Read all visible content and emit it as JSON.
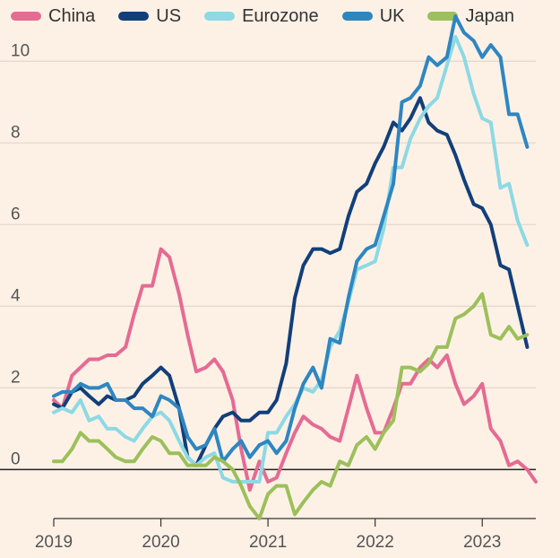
{
  "chart_data": {
    "type": "line",
    "title": "",
    "xlabel": "",
    "ylabel": "",
    "xlim": [
      2019.0,
      2023.5
    ],
    "ylim": [
      -1.2,
      11.5
    ],
    "y_ticks": [
      0,
      2,
      4,
      6,
      8,
      10
    ],
    "x_ticks": [
      2019,
      2020,
      2021,
      2022,
      2023
    ],
    "y_tick_labels": [
      "0",
      "2",
      "4",
      "6",
      "8",
      "10"
    ],
    "x_tick_labels": [
      "2019",
      "2020",
      "2021",
      "2022",
      "2023"
    ],
    "grid": true,
    "legend_position": "top-left",
    "series": [
      {
        "name": "China",
        "color": "#e56b93",
        "points": [
          [
            2019.0,
            1.7
          ],
          [
            2019.08,
            1.5
          ],
          [
            2019.17,
            2.3
          ],
          [
            2019.25,
            2.5
          ],
          [
            2019.33,
            2.7
          ],
          [
            2019.42,
            2.7
          ],
          [
            2019.5,
            2.8
          ],
          [
            2019.58,
            2.8
          ],
          [
            2019.67,
            3.0
          ],
          [
            2019.75,
            3.8
          ],
          [
            2019.83,
            4.5
          ],
          [
            2019.92,
            4.5
          ],
          [
            2020.0,
            5.4
          ],
          [
            2020.08,
            5.2
          ],
          [
            2020.17,
            4.3
          ],
          [
            2020.25,
            3.3
          ],
          [
            2020.33,
            2.4
          ],
          [
            2020.42,
            2.5
          ],
          [
            2020.5,
            2.7
          ],
          [
            2020.58,
            2.4
          ],
          [
            2020.67,
            1.7
          ],
          [
            2020.75,
            0.5
          ],
          [
            2020.83,
            -0.5
          ],
          [
            2020.92,
            0.2
          ],
          [
            2021.0,
            -0.3
          ],
          [
            2021.08,
            -0.2
          ],
          [
            2021.17,
            0.4
          ],
          [
            2021.25,
            0.9
          ],
          [
            2021.33,
            1.3
          ],
          [
            2021.42,
            1.1
          ],
          [
            2021.5,
            1.0
          ],
          [
            2021.58,
            0.8
          ],
          [
            2021.67,
            0.7
          ],
          [
            2021.75,
            1.5
          ],
          [
            2021.83,
            2.3
          ],
          [
            2021.92,
            1.5
          ],
          [
            2022.0,
            0.9
          ],
          [
            2022.08,
            0.9
          ],
          [
            2022.17,
            1.5
          ],
          [
            2022.25,
            2.1
          ],
          [
            2022.33,
            2.1
          ],
          [
            2022.42,
            2.5
          ],
          [
            2022.5,
            2.7
          ],
          [
            2022.58,
            2.5
          ],
          [
            2022.67,
            2.8
          ],
          [
            2022.75,
            2.1
          ],
          [
            2022.83,
            1.6
          ],
          [
            2022.92,
            1.8
          ],
          [
            2023.0,
            2.1
          ],
          [
            2023.08,
            1.0
          ],
          [
            2023.17,
            0.7
          ],
          [
            2023.25,
            0.1
          ],
          [
            2023.33,
            0.2
          ],
          [
            2023.42,
            0.0
          ],
          [
            2023.5,
            -0.3
          ]
        ]
      },
      {
        "name": "US",
        "color": "#123f7a",
        "points": [
          [
            2019.0,
            1.6
          ],
          [
            2019.08,
            1.5
          ],
          [
            2019.17,
            1.9
          ],
          [
            2019.25,
            2.0
          ],
          [
            2019.33,
            1.8
          ],
          [
            2019.42,
            1.6
          ],
          [
            2019.5,
            1.8
          ],
          [
            2019.58,
            1.7
          ],
          [
            2019.67,
            1.7
          ],
          [
            2019.75,
            1.8
          ],
          [
            2019.83,
            2.1
          ],
          [
            2019.92,
            2.3
          ],
          [
            2020.0,
            2.5
          ],
          [
            2020.08,
            2.3
          ],
          [
            2020.17,
            1.5
          ],
          [
            2020.25,
            0.3
          ],
          [
            2020.33,
            0.1
          ],
          [
            2020.42,
            0.6
          ],
          [
            2020.5,
            1.0
          ],
          [
            2020.58,
            1.3
          ],
          [
            2020.67,
            1.4
          ],
          [
            2020.75,
            1.2
          ],
          [
            2020.83,
            1.2
          ],
          [
            2020.92,
            1.4
          ],
          [
            2021.0,
            1.4
          ],
          [
            2021.08,
            1.7
          ],
          [
            2021.17,
            2.6
          ],
          [
            2021.25,
            4.2
          ],
          [
            2021.33,
            5.0
          ],
          [
            2021.42,
            5.4
          ],
          [
            2021.5,
            5.4
          ],
          [
            2021.58,
            5.3
          ],
          [
            2021.67,
            5.4
          ],
          [
            2021.75,
            6.2
          ],
          [
            2021.83,
            6.8
          ],
          [
            2021.92,
            7.0
          ],
          [
            2022.0,
            7.5
          ],
          [
            2022.08,
            7.9
          ],
          [
            2022.17,
            8.5
          ],
          [
            2022.25,
            8.3
          ],
          [
            2022.33,
            8.6
          ],
          [
            2022.42,
            9.1
          ],
          [
            2022.5,
            8.5
          ],
          [
            2022.58,
            8.3
          ],
          [
            2022.67,
            8.2
          ],
          [
            2022.75,
            7.7
          ],
          [
            2022.83,
            7.1
          ],
          [
            2022.92,
            6.5
          ],
          [
            2023.0,
            6.4
          ],
          [
            2023.08,
            6.0
          ],
          [
            2023.17,
            5.0
          ],
          [
            2023.25,
            4.9
          ],
          [
            2023.33,
            4.0
          ],
          [
            2023.42,
            3.0
          ]
        ]
      },
      {
        "name": "Eurozone",
        "color": "#8dd9e4",
        "points": [
          [
            2019.0,
            1.4
          ],
          [
            2019.08,
            1.5
          ],
          [
            2019.17,
            1.4
          ],
          [
            2019.25,
            1.7
          ],
          [
            2019.33,
            1.2
          ],
          [
            2019.42,
            1.3
          ],
          [
            2019.5,
            1.0
          ],
          [
            2019.58,
            1.0
          ],
          [
            2019.67,
            0.8
          ],
          [
            2019.75,
            0.7
          ],
          [
            2019.83,
            1.0
          ],
          [
            2019.92,
            1.3
          ],
          [
            2020.0,
            1.4
          ],
          [
            2020.08,
            1.2
          ],
          [
            2020.17,
            0.7
          ],
          [
            2020.25,
            0.3
          ],
          [
            2020.33,
            0.1
          ],
          [
            2020.42,
            0.3
          ],
          [
            2020.5,
            0.4
          ],
          [
            2020.58,
            -0.2
          ],
          [
            2020.67,
            -0.3
          ],
          [
            2020.75,
            -0.3
          ],
          [
            2020.83,
            -0.3
          ],
          [
            2020.92,
            -0.3
          ],
          [
            2021.0,
            0.9
          ],
          [
            2021.08,
            0.9
          ],
          [
            2021.17,
            1.3
          ],
          [
            2021.25,
            1.6
          ],
          [
            2021.33,
            2.0
          ],
          [
            2021.42,
            1.9
          ],
          [
            2021.5,
            2.2
          ],
          [
            2021.58,
            3.0
          ],
          [
            2021.67,
            3.4
          ],
          [
            2021.75,
            4.1
          ],
          [
            2021.83,
            4.9
          ],
          [
            2021.92,
            5.0
          ],
          [
            2022.0,
            5.1
          ],
          [
            2022.08,
            5.9
          ],
          [
            2022.17,
            7.4
          ],
          [
            2022.25,
            7.4
          ],
          [
            2022.33,
            8.1
          ],
          [
            2022.42,
            8.6
          ],
          [
            2022.5,
            8.9
          ],
          [
            2022.58,
            9.1
          ],
          [
            2022.67,
            9.9
          ],
          [
            2022.75,
            10.6
          ],
          [
            2022.83,
            10.1
          ],
          [
            2022.92,
            9.2
          ],
          [
            2023.0,
            8.6
          ],
          [
            2023.08,
            8.5
          ],
          [
            2023.17,
            6.9
          ],
          [
            2023.25,
            7.0
          ],
          [
            2023.33,
            6.1
          ],
          [
            2023.42,
            5.5
          ]
        ]
      },
      {
        "name": "UK",
        "color": "#2e86c1",
        "points": [
          [
            2019.0,
            1.8
          ],
          [
            2019.08,
            1.9
          ],
          [
            2019.17,
            1.9
          ],
          [
            2019.25,
            2.1
          ],
          [
            2019.33,
            2.0
          ],
          [
            2019.42,
            2.0
          ],
          [
            2019.5,
            2.1
          ],
          [
            2019.58,
            1.7
          ],
          [
            2019.67,
            1.7
          ],
          [
            2019.75,
            1.5
          ],
          [
            2019.83,
            1.5
          ],
          [
            2019.92,
            1.3
          ],
          [
            2020.0,
            1.8
          ],
          [
            2020.08,
            1.7
          ],
          [
            2020.17,
            1.5
          ],
          [
            2020.25,
            0.8
          ],
          [
            2020.33,
            0.5
          ],
          [
            2020.42,
            0.6
          ],
          [
            2020.5,
            1.0
          ],
          [
            2020.58,
            0.2
          ],
          [
            2020.67,
            0.5
          ],
          [
            2020.75,
            0.7
          ],
          [
            2020.83,
            0.3
          ],
          [
            2020.92,
            0.6
          ],
          [
            2021.0,
            0.7
          ],
          [
            2021.08,
            0.4
          ],
          [
            2021.17,
            0.7
          ],
          [
            2021.25,
            1.5
          ],
          [
            2021.33,
            2.1
          ],
          [
            2021.42,
            2.5
          ],
          [
            2021.5,
            2.0
          ],
          [
            2021.58,
            3.2
          ],
          [
            2021.67,
            3.1
          ],
          [
            2021.75,
            4.2
          ],
          [
            2021.83,
            5.1
          ],
          [
            2021.92,
            5.4
          ],
          [
            2022.0,
            5.5
          ],
          [
            2022.08,
            6.2
          ],
          [
            2022.17,
            7.0
          ],
          [
            2022.25,
            9.0
          ],
          [
            2022.33,
            9.1
          ],
          [
            2022.42,
            9.4
          ],
          [
            2022.5,
            10.1
          ],
          [
            2022.58,
            9.9
          ],
          [
            2022.67,
            10.1
          ],
          [
            2022.75,
            11.1
          ],
          [
            2022.83,
            10.7
          ],
          [
            2022.92,
            10.5
          ],
          [
            2023.0,
            10.1
          ],
          [
            2023.08,
            10.4
          ],
          [
            2023.17,
            10.1
          ],
          [
            2023.25,
            8.7
          ],
          [
            2023.33,
            8.7
          ],
          [
            2023.42,
            7.9
          ]
        ]
      },
      {
        "name": "Japan",
        "color": "#9cc05a",
        "points": [
          [
            2019.0,
            0.2
          ],
          [
            2019.08,
            0.2
          ],
          [
            2019.17,
            0.5
          ],
          [
            2019.25,
            0.9
          ],
          [
            2019.33,
            0.7
          ],
          [
            2019.42,
            0.7
          ],
          [
            2019.5,
            0.5
          ],
          [
            2019.58,
            0.3
          ],
          [
            2019.67,
            0.2
          ],
          [
            2019.75,
            0.2
          ],
          [
            2019.83,
            0.5
          ],
          [
            2019.92,
            0.8
          ],
          [
            2020.0,
            0.7
          ],
          [
            2020.08,
            0.4
          ],
          [
            2020.17,
            0.4
          ],
          [
            2020.25,
            0.1
          ],
          [
            2020.33,
            0.1
          ],
          [
            2020.42,
            0.1
          ],
          [
            2020.5,
            0.3
          ],
          [
            2020.58,
            0.2
          ],
          [
            2020.67,
            0.0
          ],
          [
            2020.75,
            -0.4
          ],
          [
            2020.83,
            -0.9
          ],
          [
            2020.92,
            -1.2
          ],
          [
            2021.0,
            -0.6
          ],
          [
            2021.08,
            -0.4
          ],
          [
            2021.17,
            -0.4
          ],
          [
            2021.25,
            -1.1
          ],
          [
            2021.33,
            -0.8
          ],
          [
            2021.42,
            -0.5
          ],
          [
            2021.5,
            -0.3
          ],
          [
            2021.58,
            -0.4
          ],
          [
            2021.67,
            0.2
          ],
          [
            2021.75,
            0.1
          ],
          [
            2021.83,
            0.6
          ],
          [
            2021.92,
            0.8
          ],
          [
            2022.0,
            0.5
          ],
          [
            2022.08,
            0.9
          ],
          [
            2022.17,
            1.2
          ],
          [
            2022.25,
            2.5
          ],
          [
            2022.33,
            2.5
          ],
          [
            2022.42,
            2.4
          ],
          [
            2022.5,
            2.6
          ],
          [
            2022.58,
            3.0
          ],
          [
            2022.67,
            3.0
          ],
          [
            2022.75,
            3.7
          ],
          [
            2022.83,
            3.8
          ],
          [
            2022.92,
            4.0
          ],
          [
            2023.0,
            4.3
          ],
          [
            2023.08,
            3.3
          ],
          [
            2023.17,
            3.2
          ],
          [
            2023.25,
            3.5
          ],
          [
            2023.33,
            3.2
          ],
          [
            2023.42,
            3.3
          ]
        ]
      }
    ]
  }
}
